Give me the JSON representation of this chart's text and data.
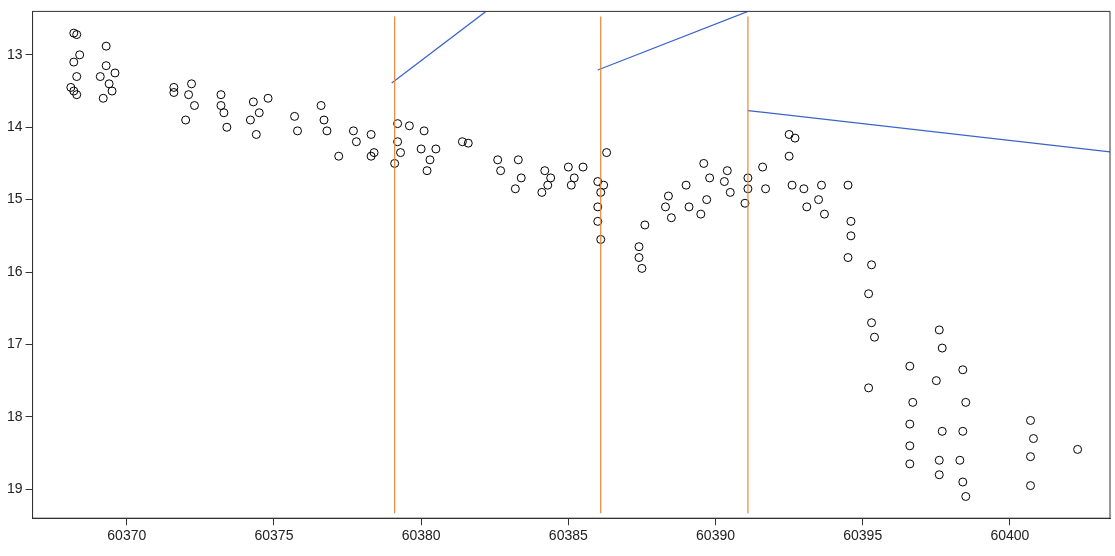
{
  "chart_data": {
    "type": "scatter",
    "xlim": [
      60366.8,
      60403.4
    ],
    "ylim": [
      19.4,
      12.4
    ],
    "xticks": [
      60370,
      60375,
      60380,
      60385,
      60390,
      60395,
      60400
    ],
    "yticks": [
      13,
      14,
      15,
      16,
      17,
      18,
      19
    ],
    "grid": false,
    "legend": false,
    "marker": "circle",
    "series": [
      {
        "color": "#000000",
        "x": [
          60368.2,
          60368.3,
          60368.2,
          60368.3,
          60368.2,
          60368.4,
          60368.1,
          60368.3,
          60369.3,
          60369.1,
          60369.4,
          60369.2,
          60369.5,
          60369.3,
          60369.6,
          60371.6,
          60371.6,
          60372.2,
          60372.3,
          60372.1,
          60372.0,
          60373.2,
          60373.3,
          60373.4,
          60373.2,
          60374.3,
          60374.4,
          60374.2,
          60374.5,
          60374.8,
          60375.7,
          60375.8,
          60376.7,
          60376.8,
          60376.6,
          60377.2,
          60377.7,
          60377.8,
          60378.3,
          60378.4,
          60378.3,
          60379.2,
          60379.1,
          60379.2,
          60379.3,
          60379.6,
          60380.1,
          60380.2,
          60380.0,
          60380.3,
          60380.5,
          60381.4,
          60381.6,
          60382.6,
          60382.7,
          60383.3,
          60383.4,
          60383.2,
          60384.2,
          60384.3,
          60384.1,
          60384.4,
          60385.0,
          60385.1,
          60385.2,
          60385.5,
          60386.0,
          60386.0,
          60386.1,
          60386.0,
          60386.1,
          60386.3,
          60386.2,
          60387.4,
          60387.5,
          60387.4,
          60387.6,
          60388.4,
          60388.5,
          60388.3,
          60389.0,
          60389.1,
          60389.6,
          60389.7,
          60389.5,
          60389.8,
          60390.4,
          60390.5,
          60390.3,
          60391.1,
          60391.0,
          60391.1,
          60391.6,
          60391.7,
          60392.5,
          60392.6,
          60392.5,
          60392.7,
          60393.0,
          60393.1,
          60393.6,
          60393.7,
          60393.5,
          60394.5,
          60394.6,
          60394.6,
          60394.5,
          60395.3,
          60395.3,
          60395.2,
          60395.4,
          60395.2,
          60396.6,
          60396.6,
          60396.7,
          60396.6,
          60396.6,
          60397.6,
          60397.7,
          60397.5,
          60397.6,
          60397.7,
          60397.6,
          60398.4,
          60398.5,
          60398.4,
          60398.3,
          60398.5,
          60398.4,
          60400.7,
          60400.7,
          60400.8,
          60400.7,
          60402.3
        ],
        "values": [
          12.7,
          12.72,
          13.1,
          13.3,
          13.5,
          13.0,
          13.45,
          13.55,
          12.88,
          13.3,
          13.4,
          13.6,
          13.5,
          13.15,
          13.25,
          13.45,
          13.52,
          13.4,
          13.7,
          13.55,
          13.9,
          13.55,
          13.8,
          14.0,
          13.7,
          13.65,
          14.1,
          13.9,
          13.8,
          13.6,
          13.85,
          14.05,
          13.9,
          14.05,
          13.7,
          14.4,
          14.05,
          14.2,
          14.1,
          14.35,
          14.4,
          13.95,
          14.5,
          14.2,
          14.35,
          13.98,
          14.05,
          14.6,
          14.3,
          14.45,
          14.3,
          14.2,
          14.22,
          14.45,
          14.6,
          14.45,
          14.7,
          14.85,
          14.6,
          14.8,
          14.9,
          14.7,
          14.55,
          14.8,
          14.7,
          14.55,
          14.75,
          15.1,
          15.55,
          15.3,
          14.9,
          14.35,
          14.8,
          15.65,
          15.95,
          15.8,
          15.35,
          14.95,
          15.25,
          15.1,
          14.8,
          15.1,
          14.5,
          15.0,
          15.2,
          14.7,
          14.6,
          14.9,
          14.75,
          14.7,
          15.05,
          14.85,
          14.55,
          14.85,
          14.1,
          14.8,
          14.4,
          14.15,
          14.85,
          15.1,
          14.8,
          15.2,
          15.0,
          14.8,
          15.3,
          15.5,
          15.8,
          15.9,
          16.7,
          16.3,
          16.9,
          17.6,
          17.3,
          18.65,
          17.8,
          18.1,
          18.4,
          16.8,
          17.05,
          17.5,
          18.8,
          18.2,
          18.6,
          17.35,
          19.1,
          18.2,
          18.6,
          17.8,
          18.9,
          18.05,
          18.95,
          18.3,
          18.55,
          18.45
        ]
      },
      {
        "type": "line",
        "color": "#3a62c8",
        "marker": "none",
        "x": [
          60379.0,
          60382.2
        ],
        "values": [
          13.39,
          12.4
        ]
      },
      {
        "type": "line",
        "color": "#3a62c8",
        "marker": "none",
        "x": [
          60386.0,
          60391.1
        ],
        "values": [
          13.21,
          12.4
        ]
      },
      {
        "type": "line",
        "color": "#3a62c8",
        "marker": "none",
        "x": [
          60391.1,
          60403.4
        ],
        "values": [
          13.77,
          14.34
        ]
      }
    ],
    "ref_lines": [
      {
        "axis": "x",
        "value": 60379.1,
        "color": "#e8863a"
      },
      {
        "axis": "x",
        "value": 60386.1,
        "color": "#e8863a"
      },
      {
        "axis": "x",
        "value": 60391.1,
        "color": "#e8863a"
      }
    ]
  }
}
